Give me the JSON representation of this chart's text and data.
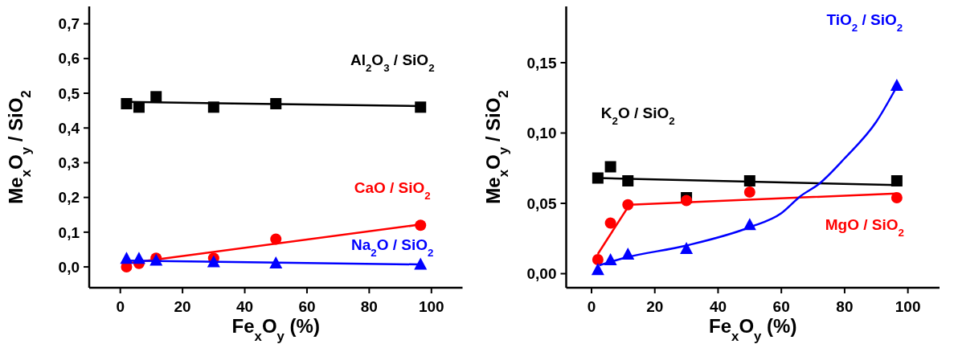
{
  "chart_data": [
    {
      "type": "scatter",
      "xlabel": "Fe$_{x}$O$_{y}$ (%)",
      "ylabel": "Me$_{x}$O$_{y}$ / SiO$_{2}$",
      "xlim": [
        -10,
        110
      ],
      "xticks": [
        0,
        20,
        40,
        60,
        80,
        100
      ],
      "ylim": [
        -0.06,
        0.75
      ],
      "yticks": [
        {
          "value": 0,
          "label": "0,0"
        },
        {
          "value": 0.1,
          "label": "0,1"
        },
        {
          "value": 0.2,
          "label": "0,2"
        },
        {
          "value": 0.3,
          "label": "0,3"
        },
        {
          "value": 0.4,
          "label": "0,4"
        },
        {
          "value": 0.5,
          "label": "0,5"
        },
        {
          "value": 0.6,
          "label": "0,6"
        },
        {
          "value": 0.7,
          "label": "0,7"
        }
      ],
      "series": [
        {
          "type": "scatter",
          "name": "Al$_{2}$O$_{3}$ / SiO$_{2}$",
          "color": "#000000",
          "marker": "square",
          "x": [
            2,
            6,
            11.5,
            30,
            50,
            96.5
          ],
          "values": [
            0.47,
            0.46,
            0.49,
            0.46,
            0.47,
            0.46
          ]
        },
        {
          "type": "line",
          "color": "#000000",
          "marker": "none",
          "x": [
            2,
            96.5
          ],
          "values": [
            0.475,
            0.463
          ]
        },
        {
          "type": "scatter",
          "name": "CaO / SiO$_{2}$",
          "color": "#ff0000",
          "marker": "circle",
          "x": [
            2,
            6,
            11.5,
            30,
            50,
            96.5
          ],
          "values": [
            0.0,
            0.01,
            0.025,
            0.025,
            0.08,
            0.12
          ]
        },
        {
          "type": "line",
          "color": "#ff0000",
          "marker": "none",
          "x": [
            2,
            96.5
          ],
          "values": [
            0.01,
            0.122
          ]
        },
        {
          "type": "scatter",
          "name": "Na$_{2}$O / SiO$_{2}$",
          "color": "#0000ff",
          "marker": "triangle",
          "x": [
            2,
            6,
            11.5,
            30,
            50,
            96.5
          ],
          "values": [
            0.025,
            0.025,
            0.02,
            0.015,
            0.012,
            0.008
          ]
        },
        {
          "type": "line",
          "color": "#0000ff",
          "marker": "none",
          "x": [
            2,
            96.5
          ],
          "values": [
            0.018,
            0.007
          ]
        }
      ]
    },
    {
      "type": "scatter",
      "xlabel": "Fe$_{x}$O$_{y}$ (%)",
      "ylabel": "Me$_{x}$O$_{y}$ / SiO$_{2}$",
      "xlim": [
        -8,
        110
      ],
      "xticks": [
        0,
        20,
        40,
        60,
        80,
        100
      ],
      "ylim": [
        -0.01,
        0.19
      ],
      "yticks": [
        {
          "value": 0,
          "label": "0,00"
        },
        {
          "value": 0.05,
          "label": "0,05"
        },
        {
          "value": 0.1,
          "label": "0,10"
        },
        {
          "value": 0.15,
          "label": "0,15"
        }
      ],
      "series": [
        {
          "type": "scatter",
          "name": "K$_{2}$O / SiO$_{2}$",
          "color": "#000000",
          "marker": "square",
          "x": [
            2,
            6,
            11.5,
            30,
            50,
            96.5
          ],
          "values": [
            0.068,
            0.076,
            0.066,
            0.054,
            0.066,
            0.066
          ]
        },
        {
          "type": "line",
          "color": "#000000",
          "marker": "none",
          "x": [
            2,
            96.5
          ],
          "values": [
            0.068,
            0.063
          ]
        },
        {
          "type": "scatter",
          "name": "MgO / SiO$_{2}$",
          "color": "#ff0000",
          "marker": "circle",
          "x": [
            2,
            6,
            11.5,
            30,
            50,
            96.5
          ],
          "values": [
            0.01,
            0.036,
            0.049,
            0.052,
            0.058,
            0.054
          ]
        },
        {
          "type": "line",
          "color": "#ff0000",
          "marker": "none",
          "x": [
            2,
            12,
            96.5
          ],
          "values": [
            0.014,
            0.049,
            0.057
          ]
        },
        {
          "type": "scatter",
          "name": "TiO$_{2}$ / SiO$_{2}$",
          "color": "#0000ff",
          "marker": "triangle",
          "x": [
            2,
            6,
            11.5,
            30,
            50,
            96.5
          ],
          "values": [
            0.003,
            0.01,
            0.014,
            0.018,
            0.035,
            0.134
          ]
        },
        {
          "type": "line",
          "color": "#0000ff",
          "marker": "none",
          "x": [
            2.5,
            10,
            30,
            50,
            60,
            66,
            72,
            80,
            90,
            96.5
          ],
          "values": [
            0.006,
            0.011,
            0.02,
            0.033,
            0.043,
            0.055,
            0.064,
            0.082,
            0.108,
            0.133
          ]
        }
      ]
    }
  ]
}
